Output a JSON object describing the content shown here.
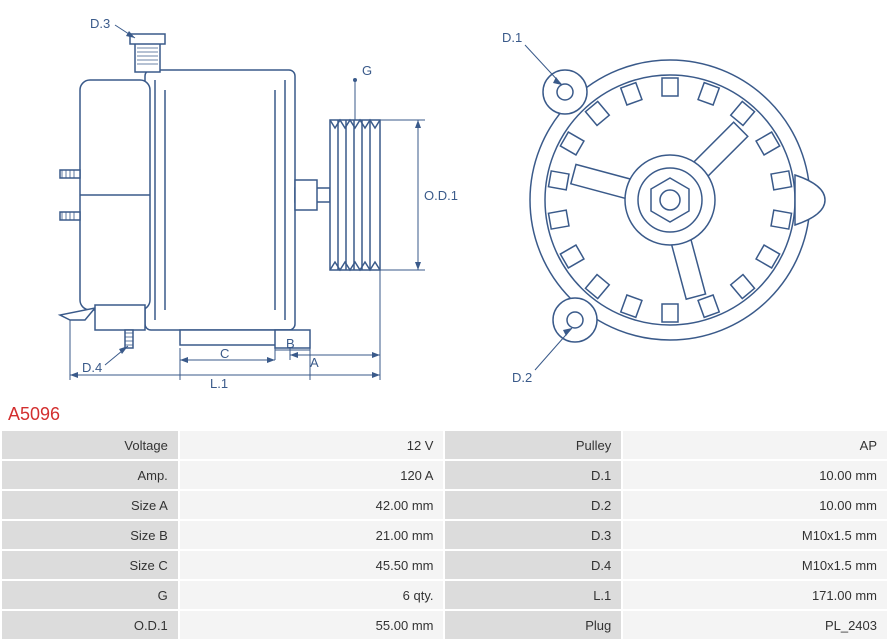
{
  "part_number": "A5096",
  "colors": {
    "drawing_stroke": "#3a5a8a",
    "part_number": "#d32f2f",
    "label_bg": "#dcdcdc",
    "value_bg": "#f4f4f4",
    "text": "#333333"
  },
  "diagram_labels": {
    "side": {
      "D3": "D.3",
      "D4": "D.4",
      "G": "G",
      "OD1": "O.D.1",
      "A": "A",
      "B": "B",
      "C": "C",
      "L1": "L.1"
    },
    "front": {
      "D1": "D.1",
      "D2": "D.2"
    }
  },
  "specs_left": [
    {
      "label": "Voltage",
      "value": "12 V"
    },
    {
      "label": "Amp.",
      "value": "120 A"
    },
    {
      "label": "Size A",
      "value": "42.00 mm"
    },
    {
      "label": "Size B",
      "value": "21.00 mm"
    },
    {
      "label": "Size C",
      "value": "45.50 mm"
    },
    {
      "label": "G",
      "value": "6 qty."
    },
    {
      "label": "O.D.1",
      "value": "55.00 mm"
    }
  ],
  "specs_right": [
    {
      "label": "Pulley",
      "value": "AP"
    },
    {
      "label": "D.1",
      "value": "10.00 mm"
    },
    {
      "label": "D.2",
      "value": "10.00 mm"
    },
    {
      "label": "D.3",
      "value": "M10x1.5 mm"
    },
    {
      "label": "D.4",
      "value": "M10x1.5 mm"
    },
    {
      "label": "L.1",
      "value": "171.00 mm"
    },
    {
      "label": "Plug",
      "value": "PL_2403"
    }
  ]
}
